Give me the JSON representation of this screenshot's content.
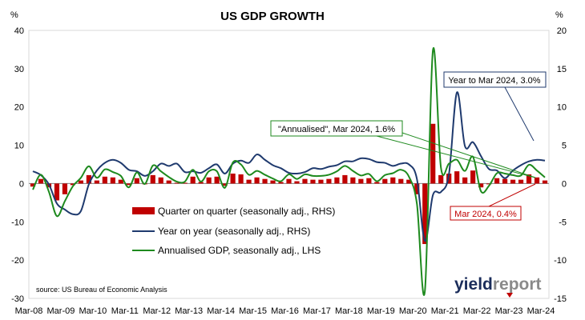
{
  "chart_data": {
    "type": "bar+line",
    "title": "US GDP GROWTH",
    "left_unit": "%",
    "right_unit": "%",
    "left_axis": {
      "ylim": [
        -30,
        40
      ],
      "ticks": [
        -30,
        -20,
        -10,
        0,
        10,
        20,
        30,
        40
      ]
    },
    "right_axis": {
      "ylim": [
        -15,
        20
      ],
      "ticks": [
        -15,
        -10,
        -5,
        0,
        5,
        10,
        15,
        20
      ]
    },
    "x_tick_labels": [
      "Mar-08",
      "Mar-09",
      "Mar-10",
      "Mar-11",
      "Mar-12",
      "Mar-13",
      "Mar-14",
      "Mar-15",
      "Mar-16",
      "Mar-17",
      "Mar-18",
      "Mar-19",
      "Mar-20",
      "Mar-21",
      "Mar-22",
      "Mar-23",
      "Mar-24"
    ],
    "quarters": [
      "Mar-08",
      "Jun-08",
      "Sep-08",
      "Dec-08",
      "Mar-09",
      "Jun-09",
      "Sep-09",
      "Dec-09",
      "Mar-10",
      "Jun-10",
      "Sep-10",
      "Dec-10",
      "Mar-11",
      "Jun-11",
      "Sep-11",
      "Dec-11",
      "Mar-12",
      "Jun-12",
      "Sep-12",
      "Dec-12",
      "Mar-13",
      "Jun-13",
      "Sep-13",
      "Dec-13",
      "Mar-14",
      "Jun-14",
      "Sep-14",
      "Dec-14",
      "Mar-15",
      "Jun-15",
      "Sep-15",
      "Dec-15",
      "Mar-16",
      "Jun-16",
      "Sep-16",
      "Dec-16",
      "Mar-17",
      "Jun-17",
      "Sep-17",
      "Dec-17",
      "Mar-18",
      "Jun-18",
      "Sep-18",
      "Dec-18",
      "Mar-19",
      "Jun-19",
      "Sep-19",
      "Dec-19",
      "Mar-20",
      "Jun-20",
      "Sep-20",
      "Dec-20",
      "Mar-21",
      "Jun-21",
      "Sep-21",
      "Dec-21",
      "Mar-22",
      "Jun-22",
      "Sep-22",
      "Dec-22",
      "Mar-23",
      "Jun-23",
      "Sep-23",
      "Dec-23",
      "Mar-24"
    ],
    "series": [
      {
        "name": "Quarter on quarter (seasonally adj., RHS)",
        "type": "bar",
        "axis": "right",
        "color": "#c00000",
        "values": [
          -0.4,
          0.6,
          -0.5,
          -2.2,
          -1.4,
          -0.2,
          0.4,
          1.1,
          0.4,
          0.9,
          0.8,
          0.5,
          -0.2,
          0.7,
          -0.1,
          1.1,
          0.8,
          0.4,
          0.1,
          0.1,
          0.9,
          0.2,
          0.8,
          0.9,
          -0.3,
          1.3,
          1.2,
          0.5,
          0.8,
          0.6,
          0.4,
          0.2,
          0.6,
          0.3,
          0.6,
          0.5,
          0.5,
          0.6,
          0.8,
          1.1,
          0.8,
          0.6,
          0.7,
          0.2,
          0.6,
          0.8,
          0.6,
          0.5,
          -1.4,
          -7.9,
          7.8,
          1.1,
          1.3,
          1.6,
          0.8,
          1.7,
          -0.5,
          -0.1,
          0.7,
          0.6,
          0.5,
          0.5,
          1.2,
          0.8,
          0.4
        ]
      },
      {
        "name": "Year on year (seasonally adj., RHS)",
        "type": "line",
        "axis": "right",
        "color": "#1f3a6e",
        "values": [
          1.6,
          1.1,
          -0.1,
          -2.6,
          -3.4,
          -4.0,
          -3.6,
          -0.1,
          1.7,
          2.7,
          3.1,
          2.7,
          1.8,
          1.6,
          1.0,
          1.6,
          2.6,
          2.3,
          2.6,
          1.5,
          1.6,
          1.4,
          2.0,
          2.5,
          1.3,
          2.6,
          3.0,
          2.7,
          3.8,
          3.1,
          2.4,
          2.0,
          1.4,
          1.3,
          1.5,
          2.0,
          1.9,
          2.2,
          2.4,
          2.9,
          2.9,
          3.3,
          3.2,
          2.8,
          2.7,
          2.3,
          2.6,
          2.5,
          0.6,
          -7.5,
          -1.5,
          -1.1,
          1.2,
          11.9,
          4.9,
          5.4,
          3.6,
          1.9,
          1.7,
          0.7,
          1.7,
          2.4,
          2.9,
          3.1,
          3.0
        ]
      },
      {
        "name": "Annualised GDP, seasonally adj., LHS",
        "type": "line",
        "axis": "left",
        "color": "#1e8a1e",
        "values": [
          -1.6,
          2.3,
          -2.1,
          -8.5,
          -4.6,
          -0.7,
          1.5,
          4.5,
          1.5,
          3.7,
          3.0,
          2.0,
          -1.0,
          2.9,
          -0.1,
          4.7,
          3.2,
          1.7,
          0.5,
          0.5,
          3.6,
          0.5,
          3.2,
          3.2,
          -1.1,
          5.5,
          5.0,
          2.3,
          3.3,
          2.3,
          1.3,
          0.6,
          2.4,
          1.2,
          2.4,
          2.0,
          2.0,
          2.3,
          3.2,
          4.6,
          3.3,
          2.1,
          2.5,
          0.6,
          2.2,
          2.7,
          3.6,
          1.8,
          -5.3,
          -28.0,
          34.8,
          4.2,
          5.2,
          6.2,
          3.3,
          7.0,
          -2.0,
          -0.6,
          2.7,
          2.6,
          2.2,
          2.1,
          4.9,
          3.4,
          1.6
        ]
      }
    ],
    "legend_placement": "center-left inside plot",
    "callouts": [
      {
        "text": "Year to Mar 2024, 3.0%",
        "color": "#1f3a6e",
        "series": 1
      },
      {
        "text": "\"Annualised\", Mar 2024, 1.6%",
        "color": "#1e8a1e",
        "series": 2
      },
      {
        "text": "Mar 2024, 0.4%",
        "color": "#c00000",
        "series": 0
      }
    ],
    "source": "source: US Bureau of Economic Analysis",
    "grid": false
  },
  "logo": {
    "part1": "yield",
    "part2": "report"
  }
}
